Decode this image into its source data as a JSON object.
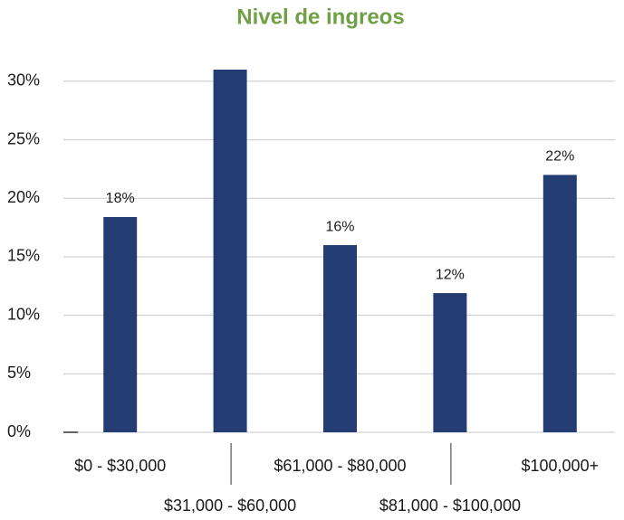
{
  "chart_data": {
    "type": "bar",
    "title": "Nivel de ingreos",
    "categories": [
      "$0 - $30,000",
      "$31,000 - $60,000",
      "$61,000 - $80,000",
      "$81,000 - $100,000",
      "$100,000+"
    ],
    "values": [
      18.4,
      31,
      16,
      11.9,
      22
    ],
    "value_labels": [
      "18%",
      null,
      "16%",
      "12%",
      "22%"
    ],
    "color": "#233d73",
    "ylim": [
      0,
      31
    ],
    "yticks": [
      {
        "value": 0,
        "label": "0%"
      },
      {
        "value": 5,
        "label": "5%"
      },
      {
        "value": 10,
        "label": "10%"
      },
      {
        "value": 15,
        "label": "15%"
      },
      {
        "value": 20,
        "label": "20%"
      },
      {
        "value": 25,
        "label": "25%"
      },
      {
        "value": 30,
        "label": "30%"
      }
    ],
    "grid": true
  }
}
